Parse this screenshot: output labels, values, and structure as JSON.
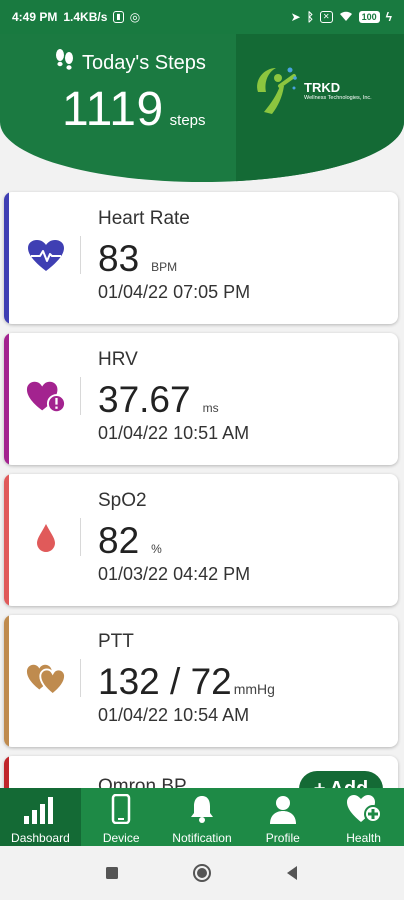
{
  "status_bar": {
    "time": "4:49 PM",
    "speed": "1.4KB/s",
    "battery": "100"
  },
  "header": {
    "title": "Today's Steps",
    "steps_value": "1119",
    "steps_unit": "steps",
    "logo_name": "TRKD",
    "logo_sub": "Wellness Technologies, Inc."
  },
  "cards": [
    {
      "label": "Heart Rate",
      "value": "83",
      "unit": "BPM",
      "date": "01/04/22 07:05 PM",
      "accent": "#3f3fb3",
      "icon": "heart-pulse-icon"
    },
    {
      "label": "HRV",
      "value": "37.67",
      "unit": "ms",
      "date": "01/04/22 10:51 AM",
      "accent": "#a3238f",
      "icon": "heart-alert-icon"
    },
    {
      "label": "SpO2",
      "value": "82",
      "unit": "%",
      "date": "01/03/22 04:42 PM",
      "accent": "#e05a5a",
      "icon": "blood-drop-icon"
    },
    {
      "label": "PTT",
      "value": "132 / 72",
      "unit": "mmHg",
      "date": "01/04/22 10:54 AM",
      "accent": "#bf8b4e",
      "icon": "double-heart-icon"
    },
    {
      "label": "Omron BP",
      "accent": "#c0262b"
    }
  ],
  "fab": {
    "label": "Add"
  },
  "nav": {
    "items": [
      {
        "label": "Dashboard",
        "icon": "bar-chart-icon"
      },
      {
        "label": "Device",
        "icon": "phone-icon"
      },
      {
        "label": "Notification",
        "icon": "bell-icon"
      },
      {
        "label": "Profile",
        "icon": "person-icon"
      },
      {
        "label": "Health",
        "icon": "heart-plus-icon"
      }
    ]
  }
}
